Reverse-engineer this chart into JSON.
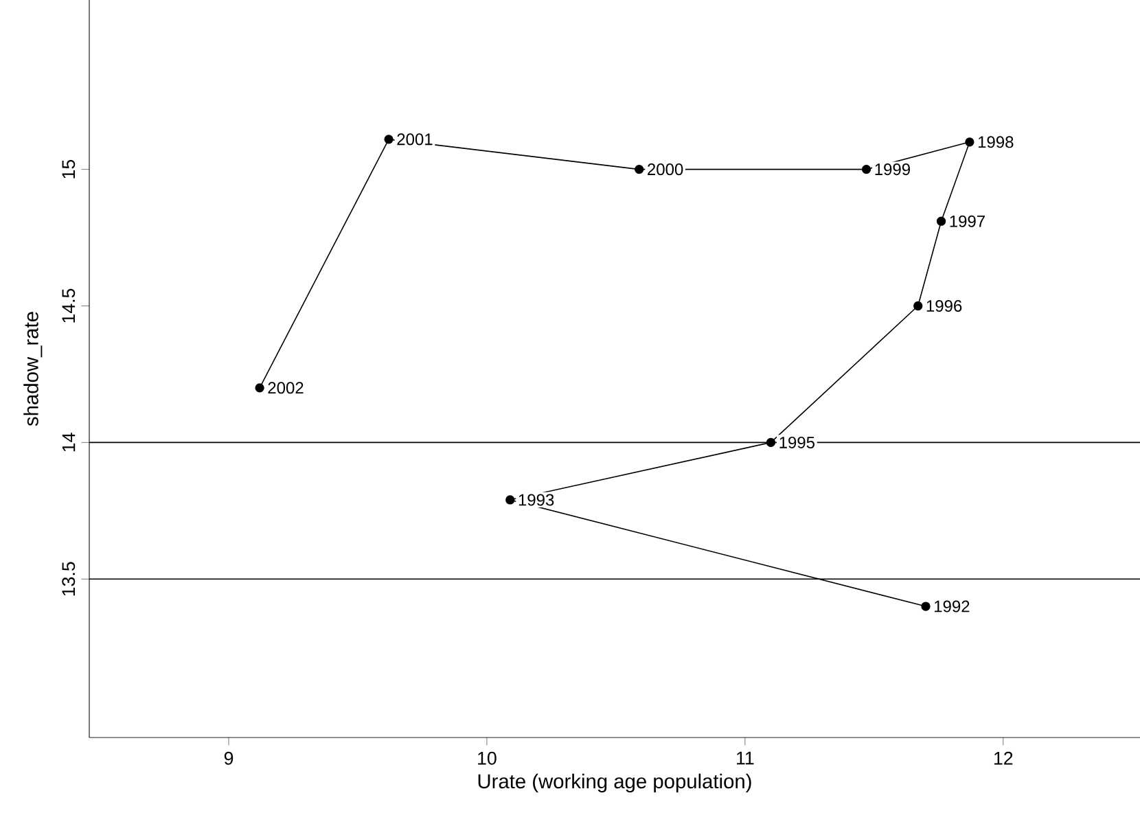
{
  "chart_data": {
    "type": "line",
    "xlabel": "Urate (working age population)",
    "ylabel": "shadow_rate",
    "x": [
      11.7,
      10.09,
      11.1,
      11.67,
      11.76,
      11.87,
      11.47,
      10.59,
      9.62,
      9.12
    ],
    "values": [
      13.4,
      13.79,
      14.0,
      14.5,
      14.81,
      15.1,
      15.0,
      15.0,
      15.11,
      14.2
    ],
    "color": "#000000",
    "marker": "circle",
    "line_style": "solid",
    "grid": false,
    "xlim": [
      8.46,
      12.53
    ],
    "ylim": [
      12.92,
      15.62
    ],
    "xticks": [
      9,
      10,
      11,
      12
    ],
    "yticks": [
      13.5,
      14,
      14.5,
      15
    ],
    "ref_lines": [
      {
        "axis": "y",
        "value": 14,
        "color": "#000000"
      },
      {
        "axis": "y",
        "value": 13.5,
        "color": "#000000"
      }
    ],
    "annotations": [
      {
        "text": "1992",
        "x": 11.7,
        "y": 13.4
      },
      {
        "text": "1993",
        "x": 10.09,
        "y": 13.79
      },
      {
        "text": "1995",
        "x": 11.1,
        "y": 14.0
      },
      {
        "text": "1996",
        "x": 11.67,
        "y": 14.5
      },
      {
        "text": "1997",
        "x": 11.76,
        "y": 14.81
      },
      {
        "text": "1998",
        "x": 11.87,
        "y": 15.1
      },
      {
        "text": "1999",
        "x": 11.47,
        "y": 15.0
      },
      {
        "text": "2000",
        "x": 10.59,
        "y": 15.0
      },
      {
        "text": "2001",
        "x": 9.62,
        "y": 15.11
      },
      {
        "text": "2002",
        "x": 9.12,
        "y": 14.2
      }
    ]
  }
}
